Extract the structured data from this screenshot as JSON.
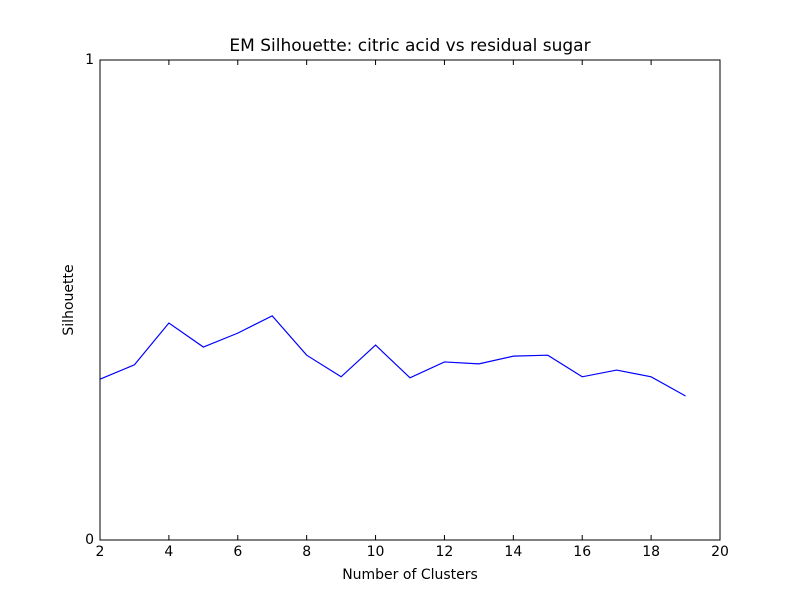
{
  "chart_data": {
    "type": "line",
    "title": "EM Silhouette: citric acid vs residual sugar",
    "x_label": "Number of Clusters",
    "y_label": "Silhouette",
    "x": [
      2,
      3,
      4,
      5,
      6,
      7,
      8,
      9,
      10,
      11,
      12,
      13,
      14,
      15,
      16,
      17,
      18,
      19
    ],
    "series": [
      {
        "name": "Silhouette",
        "color": "#0000ff",
        "values": [
          0.335,
          0.365,
          0.452,
          0.402,
          0.431,
          0.467,
          0.385,
          0.34,
          0.406,
          0.338,
          0.371,
          0.367,
          0.383,
          0.385,
          0.34,
          0.354,
          0.34,
          0.3
        ]
      }
    ],
    "xlim": [
      2,
      20
    ],
    "xticks": [
      2,
      4,
      6,
      8,
      10,
      12,
      14,
      16,
      18,
      20
    ],
    "ylim": [
      0,
      1
    ],
    "yticks": [
      0,
      1
    ],
    "grid": false
  }
}
